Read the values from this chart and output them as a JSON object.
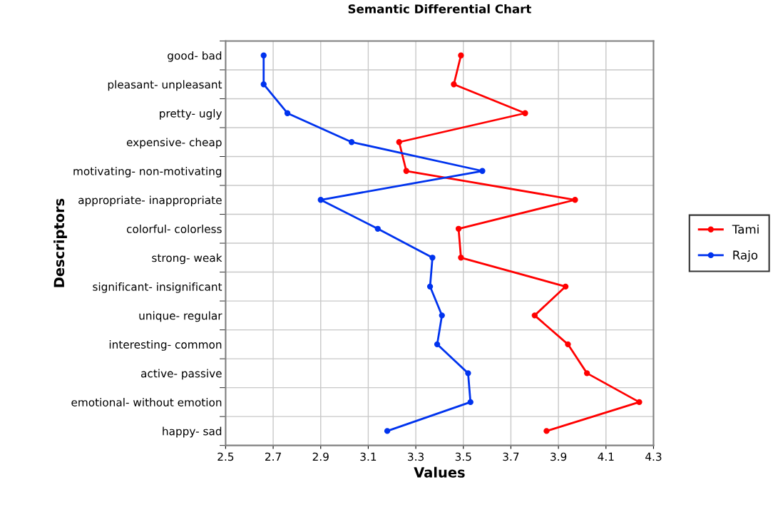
{
  "chart_data": {
    "type": "line",
    "orientation": "horizontal",
    "title": "Semantic Differential Chart",
    "xlabel": "Values",
    "ylabel": "Descriptors",
    "categories": [
      "good- bad",
      "pleasant- unpleasant",
      "pretty- ugly",
      "expensive- cheap",
      "motivating- non-motivating",
      "appropriate- inappropriate",
      "colorful- colorless",
      "strong- weak",
      "significant- insignificant",
      "unique- regular",
      "interesting- common",
      "active- passive",
      "emotional- without emotion",
      "happy- sad"
    ],
    "series": [
      {
        "name": "Tami",
        "color": "#ff0000",
        "values": [
          3.49,
          3.46,
          3.76,
          3.23,
          3.26,
          3.97,
          3.48,
          3.49,
          3.93,
          3.8,
          3.94,
          4.02,
          4.24,
          3.85
        ]
      },
      {
        "name": "Rajo",
        "color": "#0033ee",
        "values": [
          2.66,
          2.66,
          2.76,
          3.03,
          3.58,
          2.9,
          3.14,
          3.37,
          3.36,
          3.41,
          3.39,
          3.52,
          3.53,
          3.18
        ]
      }
    ],
    "xlim": [
      2.5,
      4.3
    ],
    "xticks": [
      2.5,
      2.7,
      2.9,
      3.1,
      3.3,
      3.5,
      3.7,
      3.9,
      4.1,
      4.3
    ],
    "grid": true,
    "legend": "right",
    "marker": "circle",
    "line_style": "solid"
  }
}
